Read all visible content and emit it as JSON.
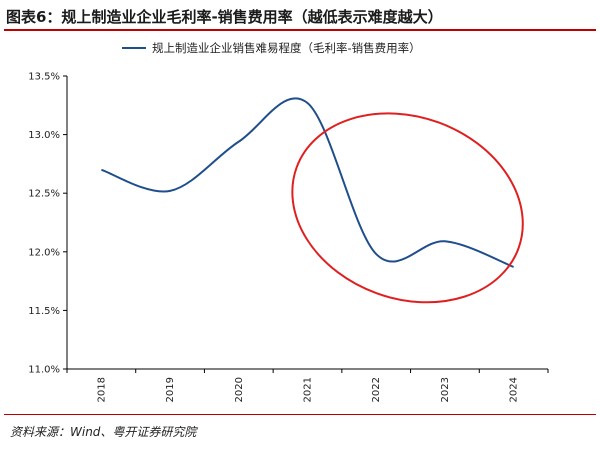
{
  "header": {
    "title": "图表6：规上制造业企业毛利率-销售费用率（越低表示难度越大）"
  },
  "footer": {
    "source": "资料来源：Wind、粤开证券研究院"
  },
  "colors": {
    "series": "#1f4e8c",
    "annotation": "#e02020",
    "title_rule": "#c00000",
    "axis": "#000000"
  },
  "chart_data": {
    "type": "line",
    "title": "图表6：规上制造业企业毛利率-销售费用率（越低表示难度越大）",
    "categories": [
      "2018",
      "2019",
      "2020",
      "2021",
      "2022",
      "2023",
      "2024"
    ],
    "x_tick_labels": [
      "2018",
      "2019",
      "2020",
      "2021",
      "2022",
      "2023",
      "2024"
    ],
    "series": [
      {
        "name": "规上制造业企业销售难易程度（毛利率-销售费用率）",
        "values": [
          12.7,
          12.52,
          12.94,
          13.27,
          11.98,
          12.09,
          11.87
        ]
      }
    ],
    "ylim": [
      11.0,
      13.5
    ],
    "y_ticks": [
      11.0,
      11.5,
      12.0,
      12.5,
      13.0,
      13.5
    ],
    "y_tick_labels": [
      "11.0%",
      "11.5%",
      "12.0%",
      "12.5%",
      "13.0%",
      "13.5%"
    ],
    "xlabel": "",
    "ylabel": "",
    "grid": false,
    "legend": "top",
    "smooth": true,
    "annotation": {
      "shape": "ellipse",
      "from_category": "2021",
      "to_category": "2024",
      "y_range": [
        11.6,
        13.15
      ]
    }
  }
}
